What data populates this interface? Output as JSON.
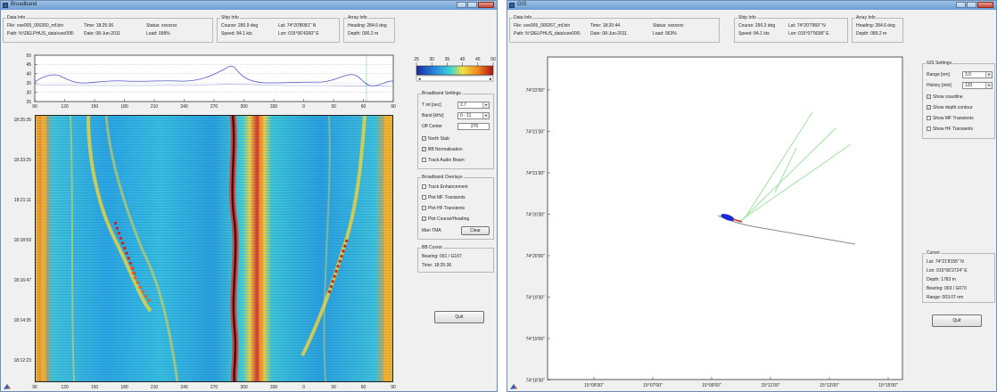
{
  "window1": {
    "title": "Broadband",
    "data_info": {
      "label": "Data Info",
      "file": "File: cee005_000260_mf.bin",
      "path": "Path: N:\\DELPHUS_data\\cee005\\",
      "time": "Time: 18:25:36",
      "date": "Date: 08-Jun-2011",
      "status": "Status: xxxxxxx",
      "load": "Load: 098%"
    },
    "ship_info": {
      "label": "Ship Info",
      "course": "Course: 286.9 deg",
      "speed": "Speed: 84.1 kts",
      "lat": "Lat: 74°20'B081\" N",
      "lon": "Lon: 015°06'4260\" E"
    },
    "array_info": {
      "label": "Array Info",
      "heading": "Heading: 284.6 deg",
      "depth": "Depth: 090.2 m"
    },
    "top_plot": {
      "yticks": [
        "50",
        "45",
        "40",
        "35",
        "30",
        "25"
      ],
      "xticks": [
        "90",
        "120",
        "150",
        "180",
        "210",
        "240",
        "270",
        "300",
        "330",
        "0",
        "30",
        "60",
        "90"
      ]
    },
    "waterfall": {
      "yticks": [
        "18:25:35",
        "18:23:25",
        "18:21:11",
        "18:18:59",
        "18:16:47",
        "18:14:35",
        "18:12:23"
      ],
      "xticks": [
        "90",
        "120",
        "150",
        "180",
        "210",
        "240",
        "270",
        "300",
        "330",
        "0",
        "30",
        "60",
        "90"
      ]
    },
    "colorbar": {
      "ticks": [
        "25",
        "30",
        "35",
        "40",
        "45",
        "50"
      ]
    },
    "broadband_settings": {
      "label": "Broadband Settings",
      "tint_label": "T int [sec]",
      "tint_value": "2.7",
      "band_label": "Band [kHz]",
      "band_value": "0 - 11",
      "offcenter_label": "Off Center",
      "offcenter_value": "276",
      "north_stab": "North Stab",
      "bb_norm": "BB Normalisation",
      "track_audio": "Track Audio Beam"
    },
    "overlays": {
      "label": "Broadband Overlays",
      "track_enh": "Track Enhancement",
      "plot_mf": "Plot MF Transients",
      "plot_hf": "Plot HF Transients",
      "plot_course": "Plot Course/Heading",
      "man_tma": "Man TMA",
      "clear": "Clear"
    },
    "bb_cursor": {
      "label": "BB Cursor",
      "bearing": "Bearing: 091 / G167",
      "time": "Time: 18:25:36"
    },
    "quit": "Quit"
  },
  "window2": {
    "title": "GIS",
    "data_info": {
      "label": "Data Info",
      "file": "File: cee005_000267_mf.bin",
      "path": "Path: N:\\DELPHUS_data\\cee005\\",
      "time": "Time: 18:20:44",
      "date": "Date: 08-Jun-2011",
      "status": "Status: xxxxxxx",
      "load": "Load: 063%"
    },
    "ship_info": {
      "label": "Ship Info",
      "course": "Course: 290.3 deg",
      "speed": "Speed: 84.1 kts",
      "lat": "Lat: 74°20'7969\" N",
      "lon": "Lon: 015°07'9038\" E"
    },
    "array_info": {
      "label": "Array Info",
      "heading": "Heading: 284.6 deg",
      "depth": "Depth: 089.2 m"
    },
    "map": {
      "yticks": [
        "74°22'00\"",
        "74°21'30\"",
        "74°21'00\"",
        "74°20'30\"",
        "74°20'00\"",
        "74°19'30\"",
        "74°19'00\"",
        "74°18'30\""
      ],
      "xticks": [
        "15°05'00\"",
        "15°07'00\"",
        "15°09'00\"",
        "15°11'00\"",
        "15°13'00\"",
        "15°15'00\""
      ]
    },
    "gis_settings": {
      "label": "GIS Settings",
      "range_label": "Range [nm]",
      "range_value": "3.0",
      "history_label": "History [min]",
      "history_value": "120",
      "show_coastline": "Show coastline",
      "show_depth": "Show depth contour",
      "show_mf": "Show MF Transients",
      "show_hf": "Show HF Transients"
    },
    "cursor": {
      "label": "Cursor",
      "lat": "Lat: 74°21'8155\" N",
      "lon": "Lon: 015°06'2724\" E",
      "depth": "Depth: 1783 m",
      "bearing": "Bearing: 003 / G073",
      "range": "Range: 003.07 nm"
    },
    "quit": "Quit"
  }
}
